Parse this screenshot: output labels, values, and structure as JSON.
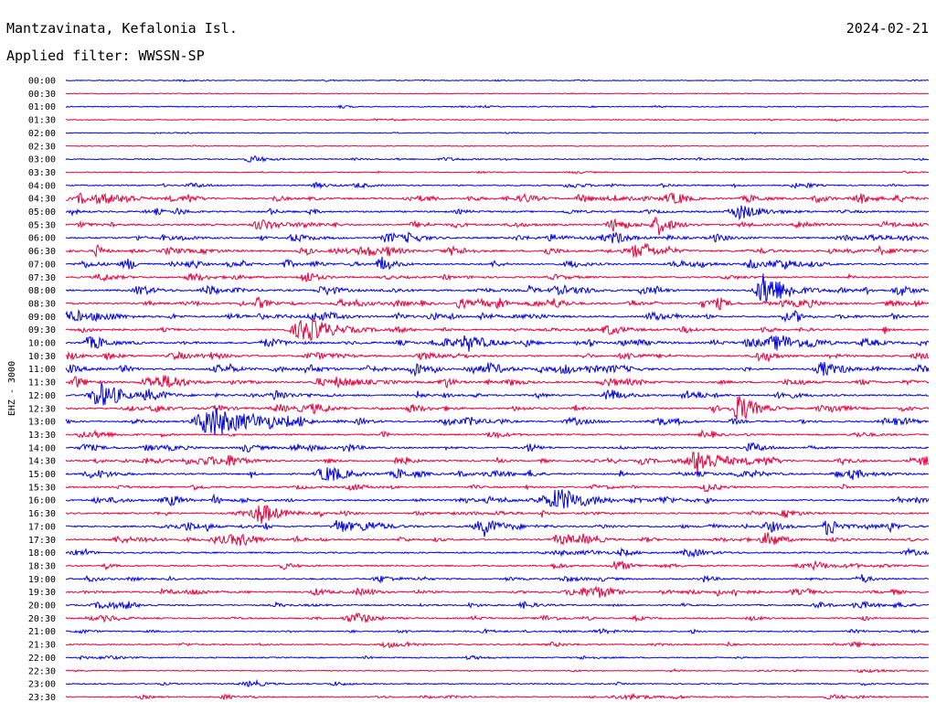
{
  "header": {
    "station": "Mantzavinata, Kefalonia Isl.",
    "date": "2024-02-21",
    "filter": "Applied filter: WWSSN-SP"
  },
  "chart_data": {
    "type": "line",
    "ylabel": "EHZ - 3000",
    "colors": {
      "odd": "#0000e6",
      "even": "#e8003c"
    },
    "rows": [
      "00:00",
      "00:30",
      "01:00",
      "01:30",
      "02:00",
      "02:30",
      "03:00",
      "03:30",
      "04:00",
      "04:30",
      "05:00",
      "05:30",
      "06:00",
      "06:30",
      "07:00",
      "07:30",
      "08:00",
      "08:30",
      "09:00",
      "09:30",
      "10:00",
      "10:30",
      "11:00",
      "11:30",
      "12:00",
      "12:30",
      "13:00",
      "13:30",
      "14:00",
      "14:30",
      "15:00",
      "15:30",
      "16:00",
      "16:30",
      "17:00",
      "17:30",
      "18:00",
      "18:30",
      "19:00",
      "19:30",
      "20:00",
      "20:30",
      "21:00",
      "21:30",
      "22:00",
      "22:30",
      "23:00",
      "23:30"
    ],
    "activity": [
      0.2,
      0.15,
      0.3,
      0.25,
      0.2,
      0.15,
      0.4,
      0.3,
      0.6,
      0.9,
      0.9,
      1.0,
      1.0,
      1.0,
      1.0,
      0.9,
      1.0,
      1.0,
      0.9,
      0.9,
      1.0,
      0.9,
      1.0,
      1.0,
      1.0,
      0.9,
      0.9,
      0.9,
      0.9,
      0.9,
      0.9,
      0.9,
      0.9,
      0.9,
      0.9,
      0.8,
      0.8,
      0.8,
      0.8,
      0.8,
      0.7,
      0.7,
      0.6,
      0.6,
      0.5,
      0.3,
      0.5,
      0.5
    ]
  }
}
